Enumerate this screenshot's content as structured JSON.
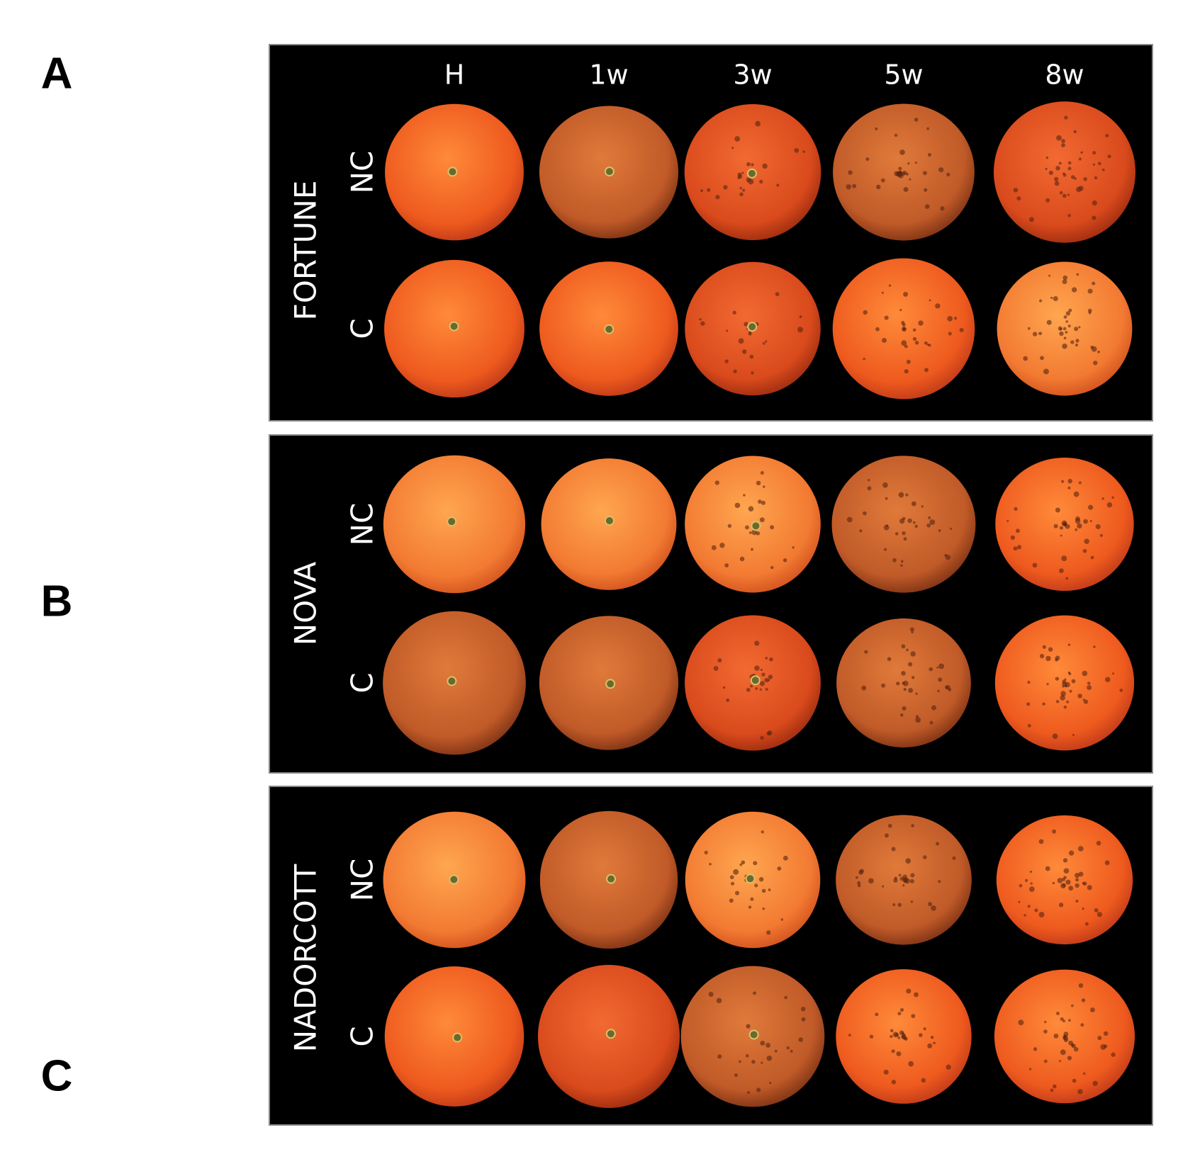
{
  "columns": [
    "H",
    "1w",
    "3w",
    "5w",
    "8w"
  ],
  "panels": [
    {
      "letter": "A",
      "cultivar": "FORTUNE",
      "rows": [
        "NC",
        "C"
      ]
    },
    {
      "letter": "B",
      "cultivar": "NOVA",
      "rows": [
        "NC",
        "C"
      ]
    },
    {
      "letter": "C",
      "cultivar": "NADORCOTT",
      "rows": [
        "NC",
        "C"
      ]
    }
  ]
}
